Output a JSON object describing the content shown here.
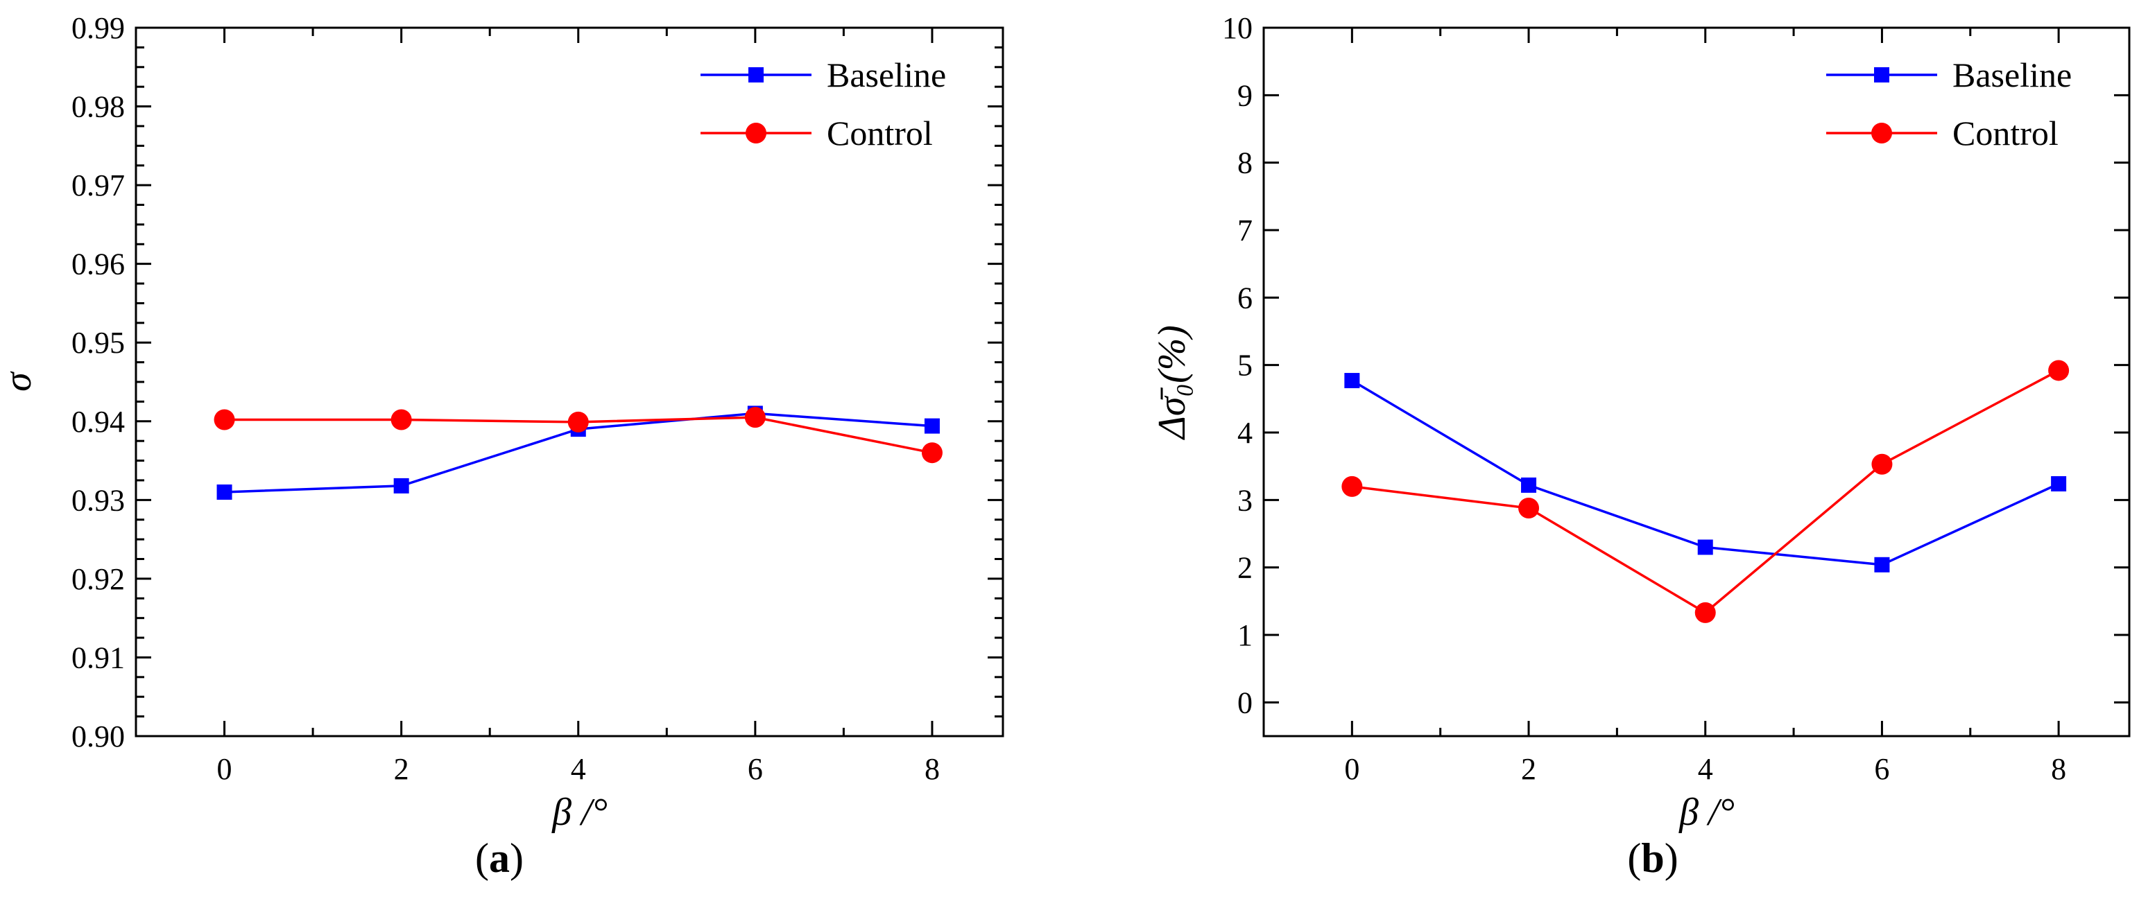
{
  "chart_data": [
    {
      "id": "a",
      "type": "line",
      "panel_label": "a",
      "title": "",
      "xlabel": "β /°",
      "ylabel": "σ",
      "x": [
        0,
        2,
        4,
        6,
        8
      ],
      "xlim": [
        -1,
        8.8
      ],
      "ylim": [
        0.9,
        0.99
      ],
      "xticks": [
        0,
        2,
        4,
        6,
        8
      ],
      "yticks": [
        0.9,
        0.91,
        0.92,
        0.93,
        0.94,
        0.95,
        0.96,
        0.97,
        0.98,
        0.99
      ],
      "ytick_labels": [
        "0.90",
        "0.91",
        "0.92",
        "0.93",
        "0.94",
        "0.95",
        "0.96",
        "0.97",
        "0.98",
        "0.99"
      ],
      "legend_position": "top-right",
      "series": [
        {
          "name": "Baseline",
          "color": "#0000ff",
          "marker": "square",
          "values": [
            0.931,
            0.9318,
            0.939,
            0.941,
            0.9394
          ]
        },
        {
          "name": "Control",
          "color": "#ff0000",
          "marker": "circle",
          "values": [
            0.9402,
            0.9402,
            0.9399,
            0.9405,
            0.936
          ]
        }
      ]
    },
    {
      "id": "b",
      "type": "line",
      "panel_label": "b",
      "title": "",
      "xlabel": "β /°",
      "ylabel": "Δσ̄₀(%)",
      "x": [
        0,
        2,
        4,
        6,
        8
      ],
      "xlim": [
        -1,
        8.8
      ],
      "ylim": [
        -0.5,
        10
      ],
      "xticks": [
        0,
        2,
        4,
        6,
        8
      ],
      "yticks": [
        0,
        1,
        2,
        3,
        4,
        5,
        6,
        7,
        8,
        9,
        10
      ],
      "ytick_labels": [
        "0",
        "1",
        "2",
        "3",
        "4",
        "5",
        "6",
        "7",
        "8",
        "9",
        "10"
      ],
      "legend_position": "top-right",
      "series": [
        {
          "name": "Baseline",
          "color": "#0000ff",
          "marker": "square",
          "values": [
            4.77,
            3.22,
            2.3,
            2.04,
            3.24
          ]
        },
        {
          "name": "Control",
          "color": "#ff0000",
          "marker": "circle",
          "values": [
            3.2,
            2.88,
            1.33,
            3.53,
            4.92
          ]
        }
      ]
    }
  ]
}
